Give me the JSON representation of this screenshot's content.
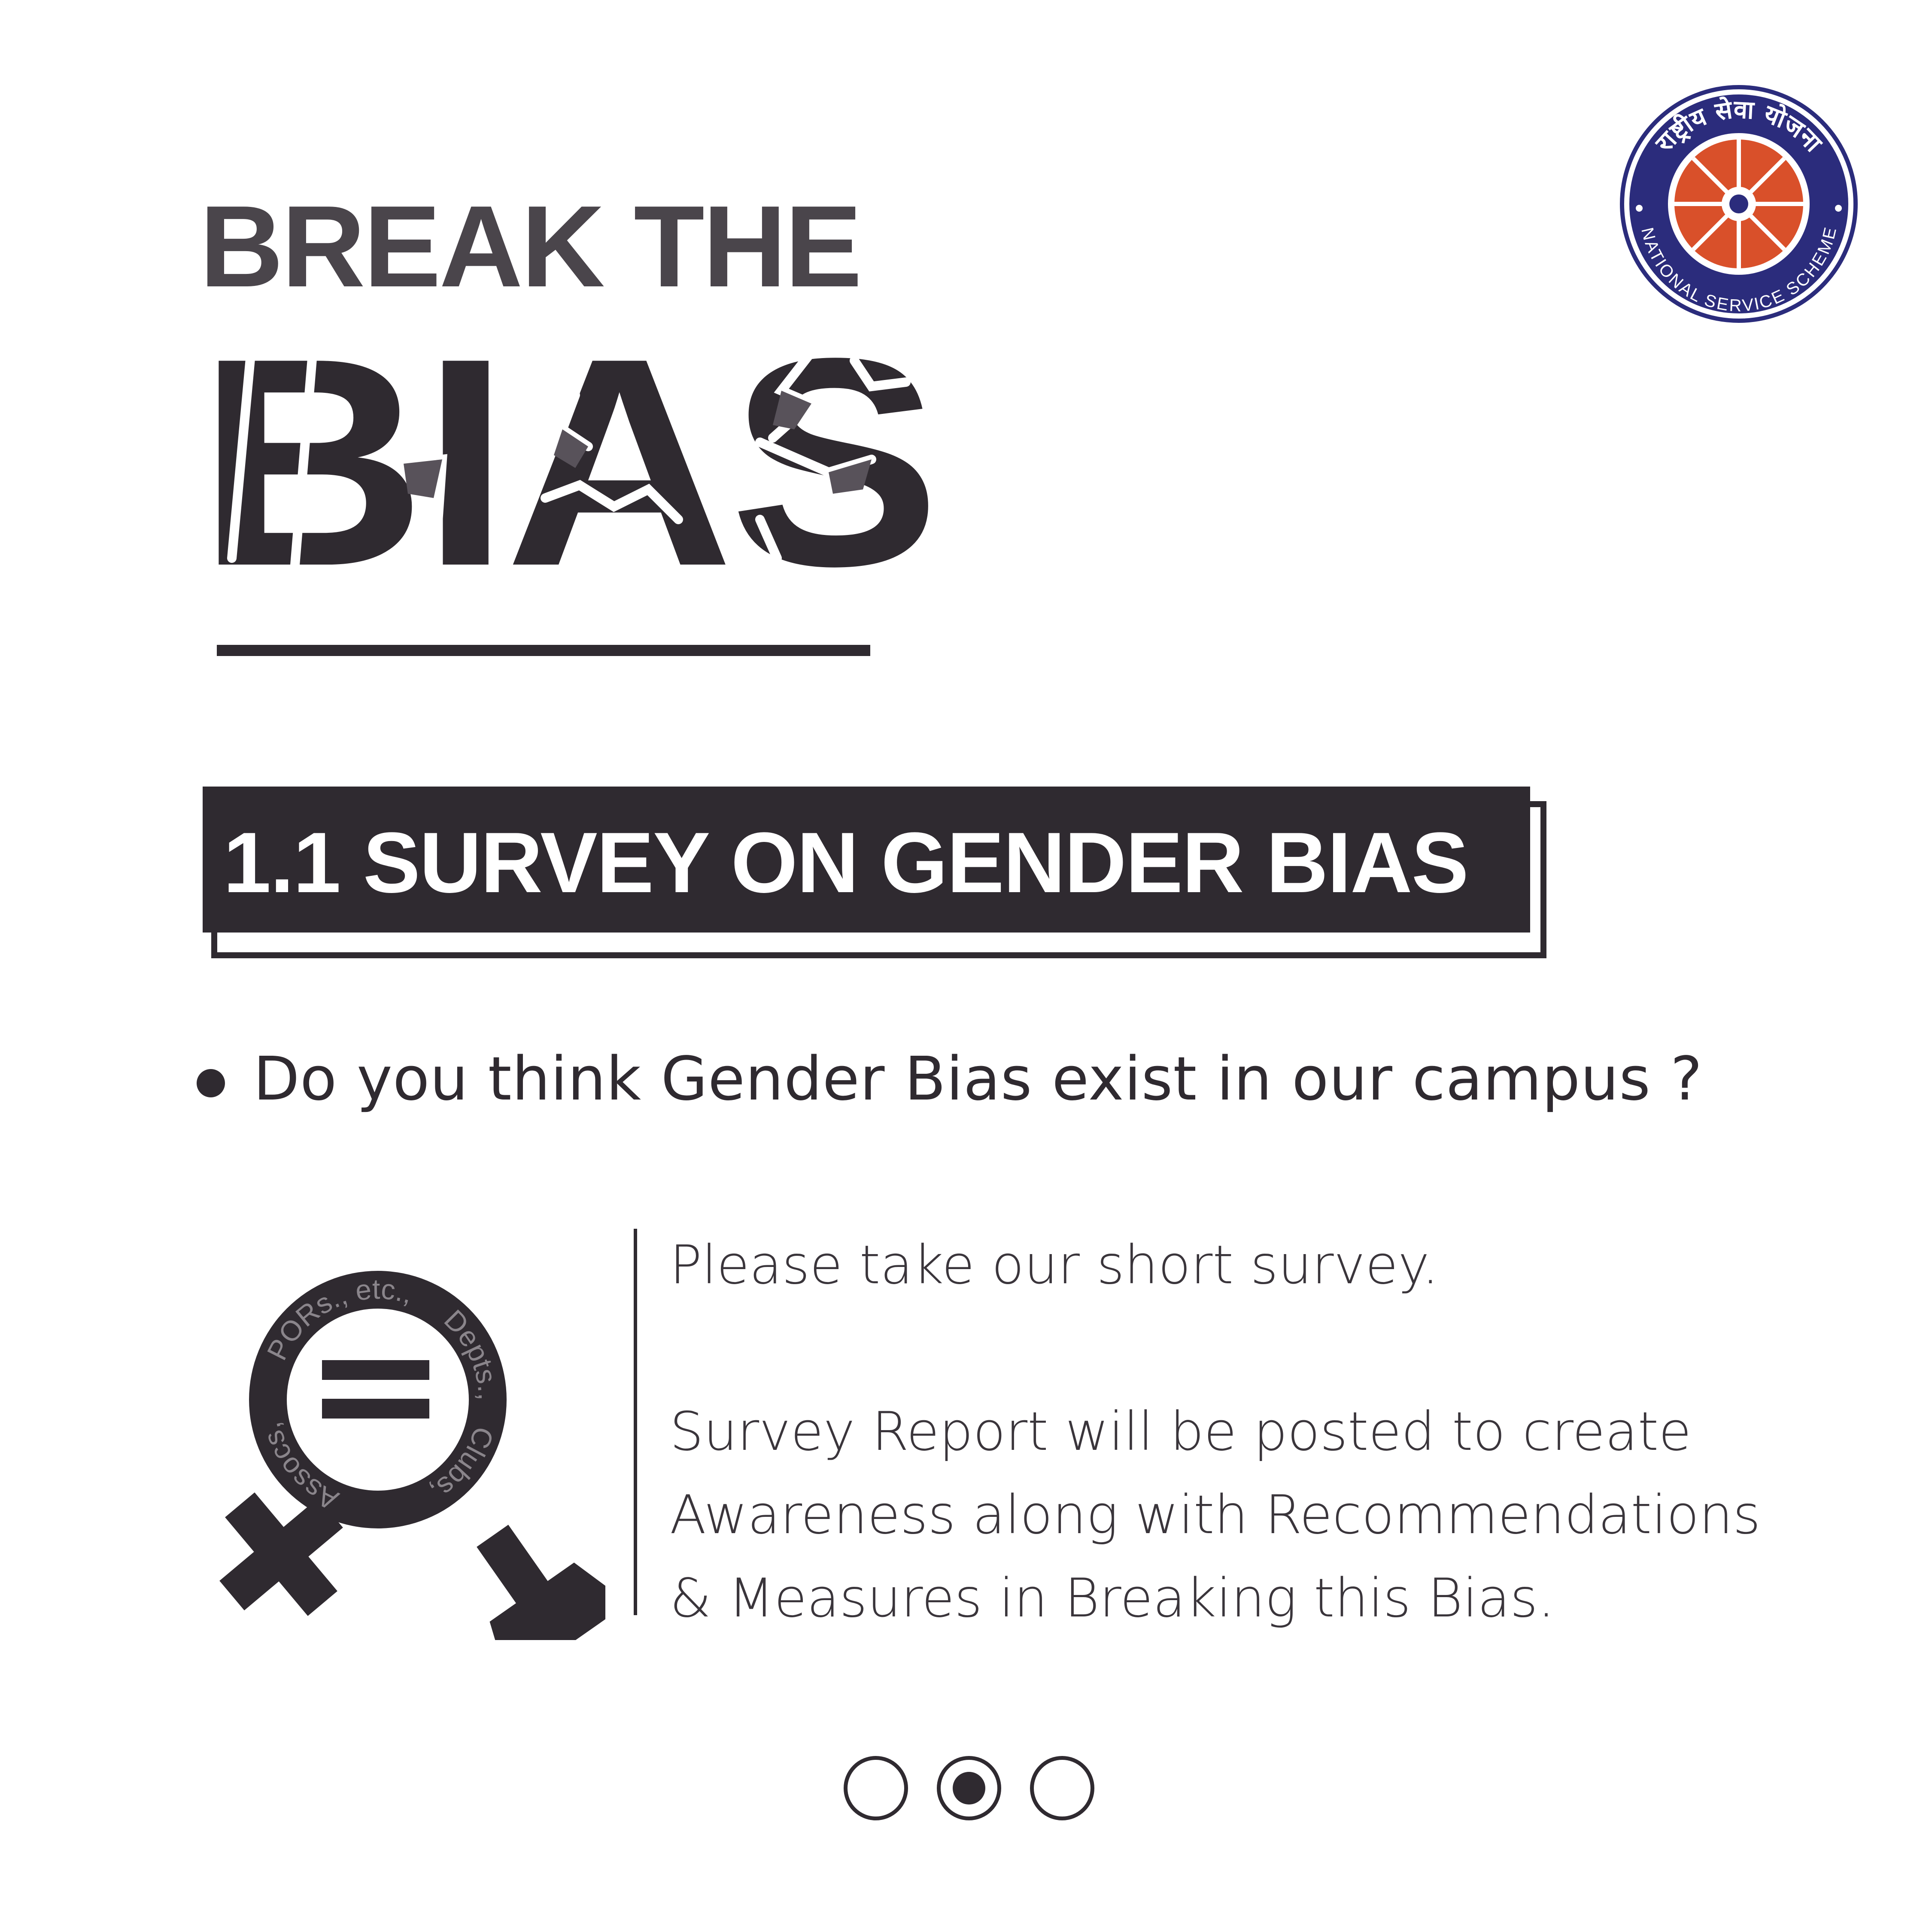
{
  "title": {
    "line1": "BREAK THE",
    "line2": "BIAS"
  },
  "logo": {
    "top_text": "राष्ट्रीय सेवा योजना",
    "bottom_text": "NATIONAL SERVICE SCHEME",
    "colors": {
      "ring": "#2b2c7c",
      "wheel": "#d9502a"
    }
  },
  "section": {
    "heading": "1.1 SURVEY ON GENDER BIAS"
  },
  "question": "Do you think Gender Bias exist in our campus ?",
  "symbol": {
    "ring_words": [
      "PORs., etc.,",
      "Depts.,",
      "Clubs,",
      "Assocs,"
    ],
    "icon": "gender-equality-icon"
  },
  "body": {
    "line1": "Please take our short survey.",
    "line2": "Survey Report will be posted to create",
    "line3": "Awareness along with Recommendations",
    "line4": "& Measures in Breaking this Bias."
  },
  "pagination": {
    "total": 3,
    "active_index": 2
  },
  "colors": {
    "ink": "#2f2a30",
    "background": "#ffffff"
  }
}
